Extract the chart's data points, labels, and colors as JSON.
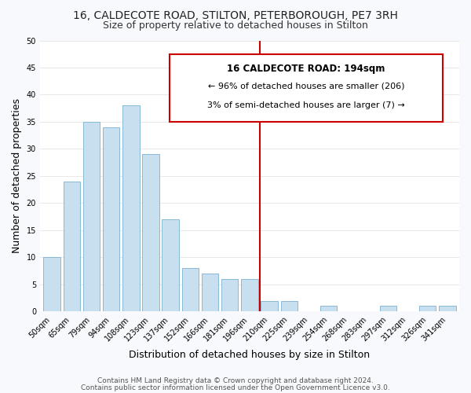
{
  "title": "16, CALDECOTE ROAD, STILTON, PETERBOROUGH, PE7 3RH",
  "subtitle": "Size of property relative to detached houses in Stilton",
  "xlabel": "Distribution of detached houses by size in Stilton",
  "ylabel": "Number of detached properties",
  "categories": [
    "50sqm",
    "65sqm",
    "79sqm",
    "94sqm",
    "108sqm",
    "123sqm",
    "137sqm",
    "152sqm",
    "166sqm",
    "181sqm",
    "196sqm",
    "210sqm",
    "225sqm",
    "239sqm",
    "254sqm",
    "268sqm",
    "283sqm",
    "297sqm",
    "312sqm",
    "326sqm",
    "341sqm"
  ],
  "values": [
    10,
    24,
    35,
    34,
    38,
    29,
    17,
    8,
    7,
    6,
    6,
    2,
    2,
    0,
    1,
    0,
    0,
    1,
    0,
    1,
    1
  ],
  "bar_color": "#c8dff0",
  "bar_edge_color": "#7ab0d0",
  "vline_index": 10.5,
  "vline_color": "#cc0000",
  "ylim": [
    0,
    50
  ],
  "yticks": [
    0,
    5,
    10,
    15,
    20,
    25,
    30,
    35,
    40,
    45,
    50
  ],
  "annotation_title": "16 CALDECOTE ROAD: 194sqm",
  "annotation_line1": "← 96% of detached houses are smaller (206)",
  "annotation_line2": "3% of semi-detached houses are larger (7) →",
  "annotation_box_color": "#ffffff",
  "annotation_box_edge": "#cc0000",
  "footer_line1": "Contains HM Land Registry data © Crown copyright and database right 2024.",
  "footer_line2": "Contains public sector information licensed under the Open Government Licence v3.0.",
  "plot_bg_color": "#ffffff",
  "fig_bg_color": "#f7f9fc",
  "grid_color": "#e8e8e8",
  "title_fontsize": 10,
  "subtitle_fontsize": 9,
  "axis_label_fontsize": 9,
  "tick_fontsize": 7,
  "footer_fontsize": 6.5,
  "ann_title_fontsize": 8.5,
  "ann_text_fontsize": 8
}
